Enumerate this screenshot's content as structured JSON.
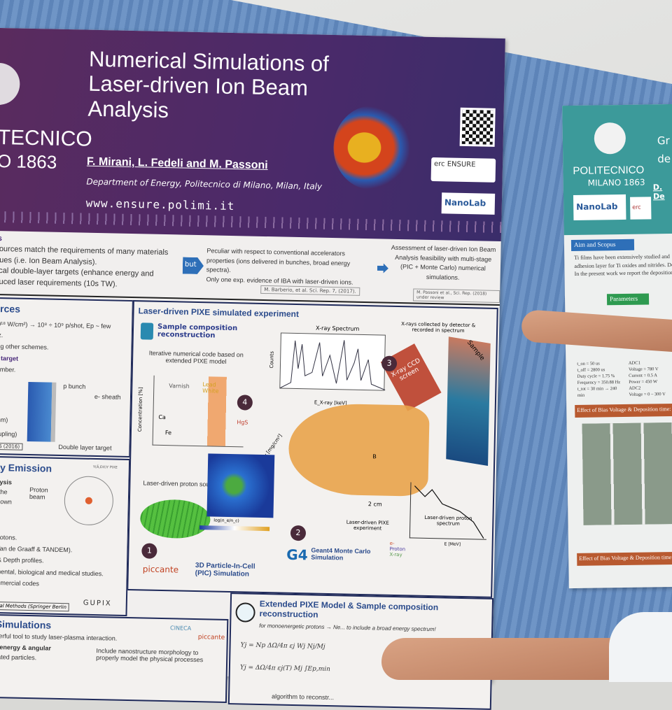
{
  "poster": {
    "logo_name": "TECNICO",
    "logo_year": "O 1863",
    "title": "Numerical Simulations of Laser-driven Ion Beam Analysis",
    "authors": "F. Mirani, L. Fedeli and M. Passoni",
    "affiliation": "Department of Energy, Politecnico di Milano, Milan, Italy",
    "url": "www.ensure.polimi.it",
    "erc_logo": "erc ENSURE",
    "nanolab_logo": "NanoLab",
    "intro": {
      "heading": "ls",
      "col1_line1": "sources match the requirements of many materials",
      "col1_line2": "ques (i.e. Ion Beam Analysis).",
      "col1_line3": "tical double-layer targets (enhance energy and",
      "col1_line4": "duced laser requirements (10s TW).",
      "but_label": "but",
      "col2_item1": "Peculiar with respect to conventional accelerators properties (ions delivered in bunches, broad energy spectra).",
      "col2_item2": "Only one exp. evidence of IBA with laser-driven ions.",
      "ref1": "M. Barberio, et al. Sci. Rep. 7, (2017).",
      "col3": "Assessment of laser-driven Ion Beam Analysis feasibility with multi-stage (PIC + Monte Carlo) numerical simulations.",
      "ref2": "M. Passoni et al., Sci. Rep. (2018) under review"
    },
    "sources": {
      "heading": "urces",
      "line1": "10¹⁸ W/cm²) → 10⁸ ÷ 10⁹ p/shot, Ep ~ few",
      "line2": "Hz.",
      "line3": "ong other schemes.",
      "sub": "er target",
      "line4": "number.",
      "line5": "0 nm)",
      "line6": "coupling)",
      "ref": "9.6 (2016)",
      "label_p_bunch": "p bunch",
      "label_e_sheath": "e- sheath",
      "caption": "Double layer target"
    },
    "xray": {
      "heading": "ray Emission",
      "sub": "nalysis",
      "line1": "ve the",
      "line2": "nknown",
      "proton_beam": "Proton beam",
      "pixe": "Y(Ä,ĐX)Y PIXE",
      "line3": "c protons.",
      "line4": "s (Van de Graaff & TANDEM).",
      "line5": "ns & Depth profiles.",
      "line6": "onmental, biological and medical studies.",
      "line7": "commercial codes",
      "gupix": "GUPIX",
      "ref": "ytical Methods (Springer Berlin"
    },
    "pixe": {
      "heading": "Laser-driven PIXE simulated experiment",
      "sample_comp": "Sample composition reconstruction",
      "iterative": "Iterative numerical code based on extended PIXE model",
      "conc_axis": "Concentration [%]",
      "areal_axis": "Areal density [mg/cm²]",
      "labels": [
        "Varnish",
        "Lead White",
        "Ca",
        "Fe",
        "HgS"
      ],
      "xray_spectrum": "X-ray Spectrum",
      "counts": "Counts",
      "ex_axis": "E_X-ray [keV]",
      "collected": "X-rays collected by detector & recorded in spectrum",
      "ccd": "X-ray CCD screen",
      "sample": "Sample",
      "two_cm": "2 cm",
      "b_field": "B",
      "pixe_exp": "Laser-driven PIXE experiment",
      "proton_spec": "Laser-driven proton spectrum",
      "e_axis": "E [MeV]",
      "legend": [
        "e-",
        "Proton",
        "X-ray"
      ],
      "proton_source": "Laser-driven proton source",
      "colorbar": "log(n_e/n_c)",
      "pic": "3D Particle-In-Cell (PIC) Simulation",
      "piccante": "piccante",
      "g4": "G4",
      "geant4": "Geant4 Monte Carlo Simulation",
      "nums": [
        "1",
        "2",
        "3",
        "4"
      ]
    },
    "pic_sim": {
      "heading": "ll Simulations",
      "line1": "powerful tool to study laser-plasma interaction.",
      "line2": "stic energy & angular",
      "line3": "elerated particles.",
      "item": "Include nanostructure morphology to properly model the physical processes",
      "cineca": "CINECA",
      "piccante": "piccante"
    },
    "ext": {
      "heading": "Extended PIXE Model & Sample composition reconstruction",
      "line1": "for monoenergetic protons → Ne... to include a broad energy spectrum!",
      "eq1": "Yj = Np ΔΩ/4π εj Wj Nj/Mj",
      "eq2": "Yj = ΔΩ/4π εj(T) Mj ∫Ep,min",
      "algo": "algorithm to reconstr..."
    }
  },
  "poster2": {
    "logo_name": "POLITECNICO",
    "logo_city": "MILANO 1863",
    "nanolab": "NanoLab",
    "erc": "erc",
    "title": "Gr de",
    "author": "D. De",
    "aim_heading": "Aim and Scopus",
    "body": "Ti films have been extensively studied and adhesion layer for Ti oxides and nitrides. De In the present work we report the deposition",
    "params_heading": "Parameters",
    "params": [
      "t_on = 50 us",
      "t_off = 2800 us",
      "Duty cycle = 1.75 %",
      "Frequency = 350.88 Hz",
      "t_tot = 30 min → 240 min",
      "ADC1",
      "Voltage = 780 V",
      "Current = 0.5 A",
      "Power = 450 W",
      "ADC2",
      "Voltage = 0 – 300 V"
    ],
    "effect1": "Effect of Bias Voltage & Deposition time:",
    "effect2": "Effect of Bias Voltage & Deposition time:"
  }
}
